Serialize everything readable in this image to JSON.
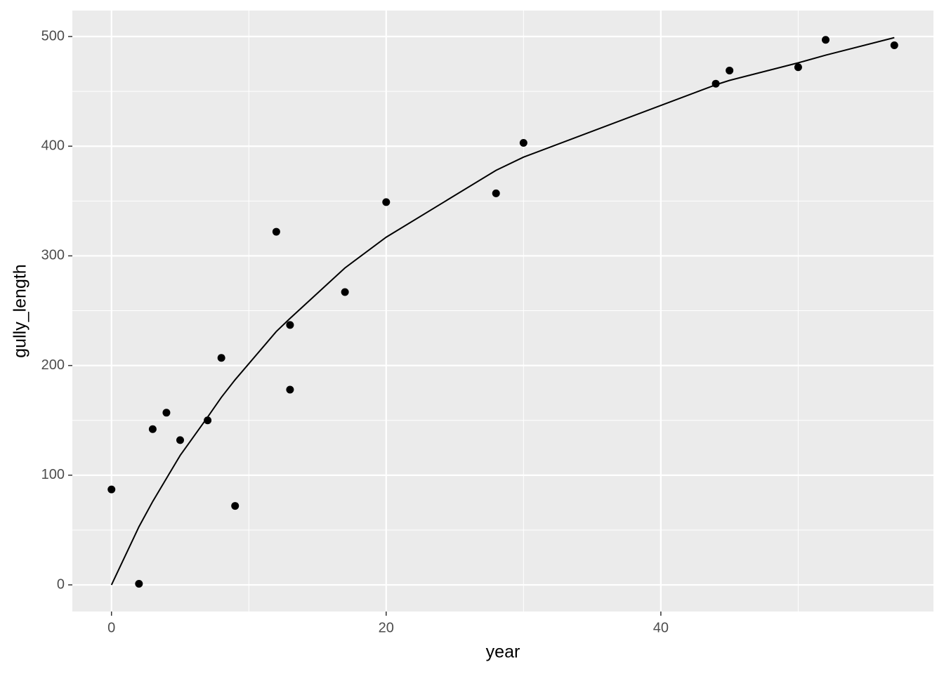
{
  "chart_data": {
    "type": "scatter",
    "x_label": "year",
    "y_label": "gully_length",
    "points": {
      "color": "#000000",
      "x": [
        0,
        2,
        3,
        4,
        5,
        7,
        8,
        9,
        12,
        13,
        13,
        17,
        20,
        28,
        30,
        44,
        45,
        50,
        52,
        57
      ],
      "y": [
        87,
        1,
        142,
        157,
        132,
        150,
        207,
        72,
        322,
        237,
        178,
        267,
        349,
        357,
        403,
        457,
        469,
        472,
        497,
        492
      ]
    },
    "line": {
      "color": "#000000",
      "x": [
        0,
        2,
        3,
        4,
        5,
        7,
        8,
        9,
        12,
        13,
        17,
        20,
        28,
        30,
        44,
        45,
        50,
        52,
        57
      ],
      "y": [
        0,
        53,
        76,
        97,
        118,
        153,
        171,
        187,
        231,
        243,
        289,
        317,
        378,
        390,
        456,
        460,
        476,
        483,
        499
      ]
    },
    "xlim": [
      -2.85,
      59.85
    ],
    "ylim": [
      -24.3,
      523.7
    ],
    "xticks": [
      0,
      20,
      40
    ],
    "yticks": [
      0,
      100,
      200,
      300,
      400,
      500
    ],
    "xminorticks": [
      10,
      30,
      50
    ],
    "yminorticks": [
      50,
      150,
      250,
      350,
      450
    ],
    "grid": true
  }
}
